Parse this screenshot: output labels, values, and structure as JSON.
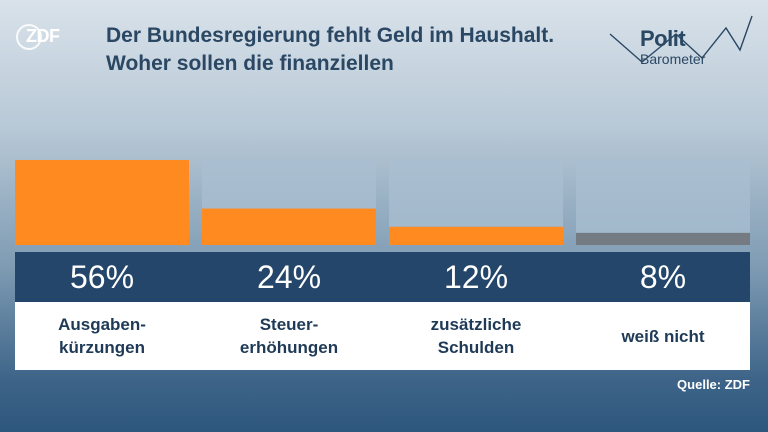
{
  "logo": {
    "text": "ZDF"
  },
  "header": {
    "title": "Der Bundesregierung fehlt Geld im Haushalt. Woher sollen die finanziellen"
  },
  "brand": {
    "line1": "Polit",
    "line2": "Barometer"
  },
  "source": "Quelle: ZDF",
  "colors": {
    "accent": "#ff8a1f",
    "neutral": "#757b82",
    "band": "#23466a",
    "title": "#2a4763"
  },
  "chart_data": {
    "type": "bar",
    "categories": [
      "Ausgaben-\nkürzungen",
      "Steuer-\nerhöhungen",
      "zusätzliche\nSchulden",
      "weiß nicht"
    ],
    "values": [
      56,
      24,
      12,
      8
    ],
    "value_labels": [
      "56%",
      "24%",
      "12%",
      "8%"
    ],
    "unit": "%",
    "ylim": [
      0,
      56
    ],
    "grid": false,
    "legend": "none",
    "series_colors": [
      "#ff8a1f",
      "#ff8a1f",
      "#ff8a1f",
      "#757b82"
    ]
  }
}
